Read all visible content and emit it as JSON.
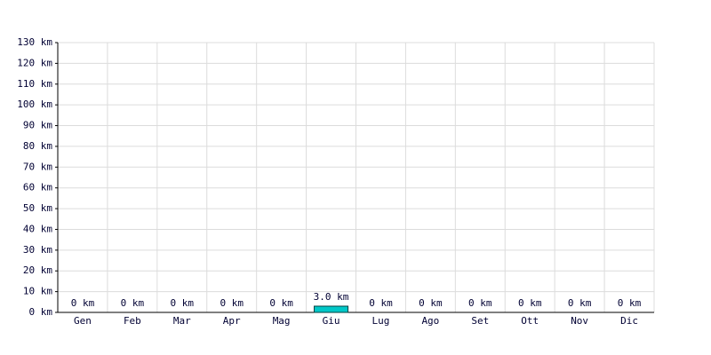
{
  "chart_data": {
    "type": "bar",
    "categories": [
      "Gen",
      "Feb",
      "Mar",
      "Apr",
      "Mag",
      "Giu",
      "Lug",
      "Ago",
      "Set",
      "Ott",
      "Nov",
      "Dic"
    ],
    "values": [
      0,
      0,
      0,
      0,
      0,
      3.0,
      0,
      0,
      0,
      0,
      0,
      0
    ],
    "value_labels": [
      "0 km",
      "0 km",
      "0 km",
      "0 km",
      "0 km",
      "3.0 km",
      "0 km",
      "0 km",
      "0 km",
      "0 km",
      "0 km",
      "0 km"
    ],
    "color": "#00c8c8",
    "ylim": [
      0,
      130
    ],
    "yticks": [
      {
        "value": 0,
        "label": "0 km"
      },
      {
        "value": 10,
        "label": "10 km"
      },
      {
        "value": 20,
        "label": "20 km"
      },
      {
        "value": 30,
        "label": "30 km"
      },
      {
        "value": 40,
        "label": "40 km"
      },
      {
        "value": 50,
        "label": "50 km"
      },
      {
        "value": 60,
        "label": "60 km"
      },
      {
        "value": 70,
        "label": "70 km"
      },
      {
        "value": 80,
        "label": "80 km"
      },
      {
        "value": 90,
        "label": "90 km"
      },
      {
        "value": 100,
        "label": "100 km"
      },
      {
        "value": 110,
        "label": "110 km"
      },
      {
        "value": 120,
        "label": "120 km"
      },
      {
        "value": 130,
        "label": "130 km"
      }
    ],
    "grid": true
  }
}
